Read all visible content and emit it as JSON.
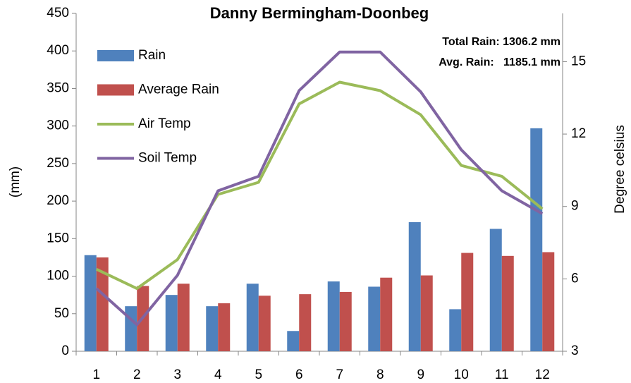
{
  "chart_data": {
    "type": "bar_line",
    "title": "Danny Bermingham-Doonbeg",
    "ylabel": "(mm)",
    "y2label": "Degree celsius",
    "annotations": [
      "Total Rain: 1306.2 mm",
      "Avg. Rain:   1185.1 mm"
    ],
    "categories": [
      "1",
      "2",
      "3",
      "4",
      "5",
      "6",
      "7",
      "8",
      "9",
      "10",
      "11",
      "12"
    ],
    "series": [
      {
        "name": "Rain",
        "kind": "bar",
        "color": "#4f81bd",
        "values": [
          128,
          60,
          75,
          60,
          90,
          27,
          93,
          86,
          172,
          56,
          163,
          297
        ]
      },
      {
        "name": "Average Rain",
        "kind": "bar",
        "color": "#c0504d",
        "values": [
          125,
          87,
          90,
          64,
          74,
          76,
          79,
          98,
          101,
          131,
          127,
          132
        ]
      },
      {
        "name": "Air Temp",
        "kind": "line",
        "axis": "y2",
        "color": "#9bbb59",
        "values": [
          6.4,
          5.6,
          6.8,
          9.5,
          10.0,
          13.25,
          14.15,
          13.8,
          12.8,
          10.7,
          10.25,
          8.9
        ]
      },
      {
        "name": "Soil Temp",
        "kind": "line",
        "axis": "y2",
        "color": "#8064a2",
        "values": [
          5.6,
          4.1,
          6.15,
          9.65,
          10.25,
          13.8,
          15.4,
          15.4,
          13.75,
          11.35,
          9.65,
          8.7
        ]
      }
    ],
    "ylim": [
      0,
      450
    ],
    "yticks": [
      0,
      50,
      100,
      150,
      200,
      250,
      300,
      350,
      400,
      450
    ],
    "y2lim": [
      3,
      17
    ],
    "y2ticks": [
      3,
      6,
      9,
      12,
      15
    ],
    "legend": "upper left"
  }
}
